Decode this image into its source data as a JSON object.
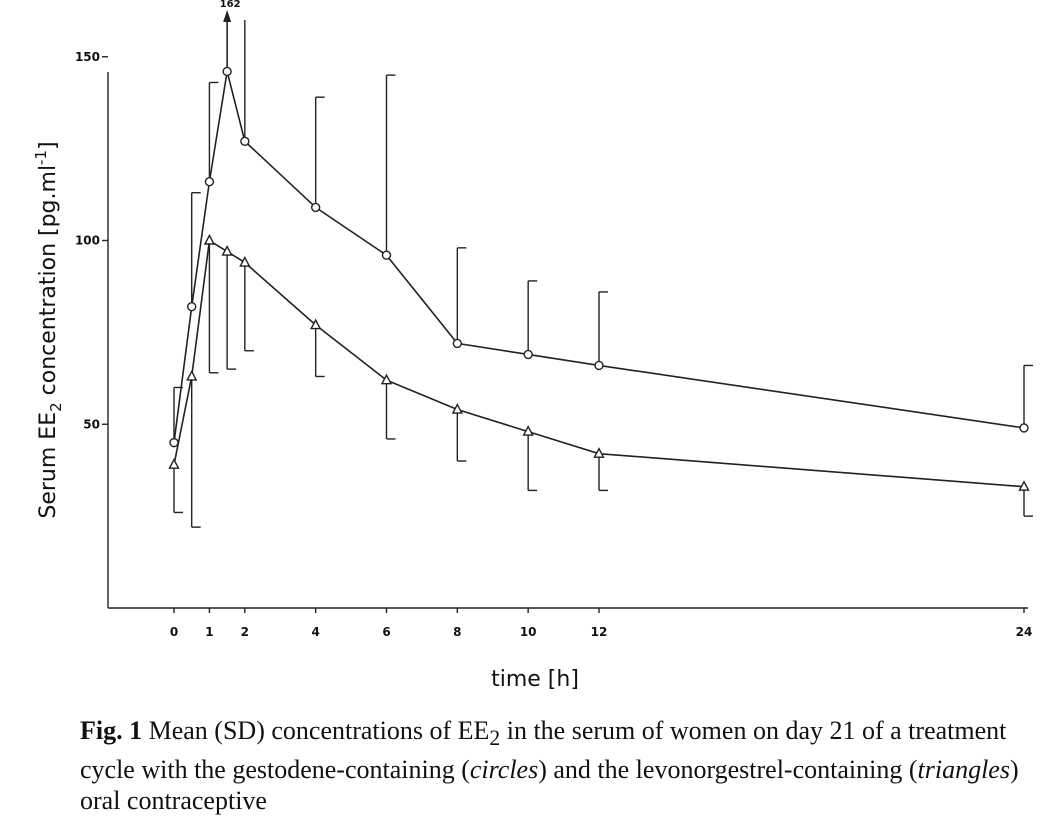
{
  "chart_data": {
    "type": "line",
    "xlabel": "time [h]",
    "ylabel": "Serum EE2 concentration [pg.ml-1]",
    "ylabel_parts": {
      "a": "Serum EE",
      "sub": "2",
      "b": " concentration [pg.ml",
      "sup": "-1",
      "c": "]"
    },
    "xlim": [
      -1.1,
      24
    ],
    "ylim": [
      0,
      160
    ],
    "xticks": [
      0,
      1,
      2,
      4,
      6,
      8,
      10,
      12,
      24
    ],
    "yticks": [
      50,
      100,
      150
    ],
    "clipped_annotation": "162",
    "series": [
      {
        "marker": "circle",
        "x": [
          0,
          0.5,
          1,
          1.5,
          2,
          4,
          6,
          8,
          10,
          12,
          24
        ],
        "y": [
          45,
          82,
          116,
          146,
          127,
          109,
          96,
          72,
          69,
          66,
          49
        ],
        "sd_upper": [
          60,
          113,
          143,
          162,
          160,
          139,
          145,
          98,
          89,
          86,
          66
        ]
      },
      {
        "marker": "triangle",
        "x": [
          0,
          0.5,
          1,
          1.5,
          2,
          4,
          6,
          8,
          10,
          12,
          24
        ],
        "y": [
          39,
          63,
          100,
          97,
          94,
          77,
          62,
          54,
          48,
          42,
          33
        ],
        "sd_lower": [
          26,
          22,
          64,
          65,
          70,
          63,
          46,
          40,
          32,
          32,
          25
        ]
      }
    ]
  },
  "caption": {
    "fig_label": "Fig. 1",
    "part1": " Mean (SD) concentrations of EE",
    "sub": "2",
    "part2": " in the serum of women on day 21 of a treatment cycle with the gestodene-containing (",
    "circles": "circles",
    "part3": ") and the levonorgestrel-containing (",
    "triangles": "triangles",
    "part4": ") oral contraceptive"
  }
}
